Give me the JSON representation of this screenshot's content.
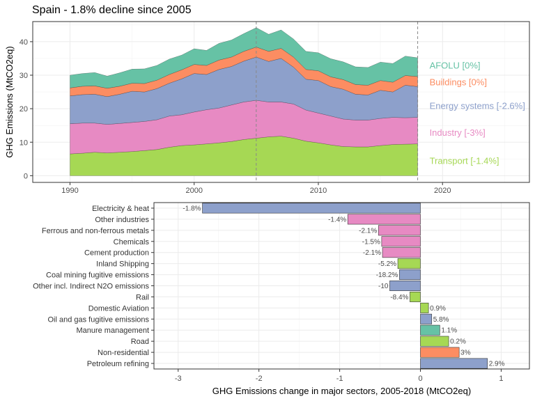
{
  "title": "Spain - 1.8% decline since 2005",
  "colors": {
    "AFOLU": "#66c2a5",
    "Buildings": "#fc8d62",
    "Energy systems": "#8da0cb",
    "Industry": "#e78ac3",
    "Transport": "#a6d854"
  },
  "chart_data": [
    {
      "type": "area",
      "stacked": true,
      "ylabel": "GHG Emissions (MtCO2eq)",
      "xlim": [
        1987,
        2027
      ],
      "ylim": [
        -2,
        46
      ],
      "xticks": [
        1990,
        2000,
        2010,
        2020
      ],
      "yticks": [
        0,
        10,
        20,
        30,
        40
      ],
      "grid": true,
      "reference_lines_x": [
        2005,
        2018
      ],
      "x": [
        1990,
        1991,
        1992,
        1993,
        1994,
        1995,
        1996,
        1997,
        1998,
        1999,
        2000,
        2001,
        2002,
        2003,
        2004,
        2005,
        2006,
        2007,
        2008,
        2009,
        2010,
        2011,
        2012,
        2013,
        2014,
        2015,
        2016,
        2017,
        2018
      ],
      "series": [
        {
          "name": "Transport",
          "label": "Transport [-1.4%]",
          "values": [
            6.5,
            6.7,
            7.0,
            6.8,
            7.0,
            7.2,
            7.5,
            7.8,
            8.5,
            9.0,
            9.2,
            9.5,
            9.8,
            10.2,
            10.8,
            11.2,
            11.6,
            11.8,
            11.2,
            10.3,
            9.8,
            9.2,
            8.7,
            8.6,
            8.6,
            9.0,
            9.3,
            9.4,
            9.5
          ]
        },
        {
          "name": "Industry",
          "label": "Industry [-3%]",
          "values": [
            9.0,
            9.0,
            8.7,
            8.5,
            8.6,
            8.7,
            8.7,
            8.9,
            9.3,
            9.2,
            9.8,
            10.2,
            10.4,
            10.9,
            11.2,
            11.3,
            10.4,
            10.2,
            10.2,
            9.3,
            8.9,
            8.6,
            8.2,
            8.0,
            8.0,
            8.1,
            8.1,
            7.9,
            7.9
          ]
        },
        {
          "name": "Energy systems",
          "label": "Energy systems [-2.6%]",
          "values": [
            8.3,
            8.5,
            8.6,
            8.3,
            8.7,
            9.3,
            8.8,
            9.3,
            9.8,
            10.7,
            11.5,
            10.5,
            11.5,
            11.5,
            12.2,
            12.9,
            12.1,
            13.0,
            11.0,
            9.2,
            9.7,
            8.8,
            8.9,
            7.7,
            7.5,
            8.4,
            7.6,
            9.7,
            9.2
          ]
        },
        {
          "name": "Buildings",
          "label": "Buildings [0%]",
          "values": [
            2.4,
            2.5,
            2.5,
            2.5,
            2.4,
            2.4,
            2.5,
            2.5,
            2.6,
            2.7,
            2.7,
            2.7,
            2.8,
            2.8,
            2.9,
            3.0,
            3.0,
            3.0,
            3.0,
            2.9,
            2.9,
            2.9,
            2.9,
            2.9,
            2.9,
            2.9,
            2.9,
            2.9,
            3.0
          ]
        },
        {
          "name": "AFOLU",
          "label": "AFOLU [0%]",
          "values": [
            3.8,
            3.8,
            4.0,
            3.6,
            4.0,
            4.2,
            4.4,
            4.4,
            4.6,
            4.4,
            4.7,
            4.5,
            5.0,
            5.1,
            5.3,
            5.8,
            5.1,
            5.5,
            5.4,
            5.4,
            5.4,
            5.4,
            5.3,
            5.3,
            5.3,
            5.5,
            5.6,
            5.8,
            5.6
          ]
        }
      ]
    },
    {
      "type": "bar",
      "orientation": "horizontal",
      "xlabel": "GHG Emissions change in major sectors, 2005-2018 (MtCO2eq)",
      "xlim": [
        -3.3,
        1.35
      ],
      "xticks": [
        -3,
        -2,
        -1,
        0,
        1
      ],
      "grid": true,
      "categories": [
        "Electricity & heat",
        "Other industries",
        "Ferrous and non-ferrous metals",
        "Chemicals",
        "Cement production",
        "Inland Shipping",
        "Coal mining fugitive emissions",
        "Other incl. Indirect N2O emissions",
        "Rail",
        "Domestic Aviation",
        "Oil and gas fugitive emissions",
        "Manure management",
        "Road",
        "Non-residential",
        "Petroleum refining"
      ],
      "values": [
        -2.7,
        -0.9,
        -0.52,
        -0.48,
        -0.47,
        -0.28,
        -0.26,
        -0.38,
        -0.13,
        0.1,
        0.14,
        0.24,
        0.35,
        0.48,
        0.83
      ],
      "labels": [
        "-1.8%",
        "-1.4%",
        "-2.1%",
        "-1.5%",
        "-2.1%",
        "-5.2%",
        "-18.2%",
        "-10",
        "-8.4%",
        "0.9%",
        "5.8%",
        "1.1%",
        "0.2%",
        "3%",
        "2.9%"
      ],
      "sectors": [
        "Energy systems",
        "Industry",
        "Industry",
        "Industry",
        "Industry",
        "Transport",
        "Energy systems",
        "Energy systems",
        "Transport",
        "Transport",
        "Energy systems",
        "AFOLU",
        "Transport",
        "Buildings",
        "Energy systems"
      ]
    }
  ]
}
